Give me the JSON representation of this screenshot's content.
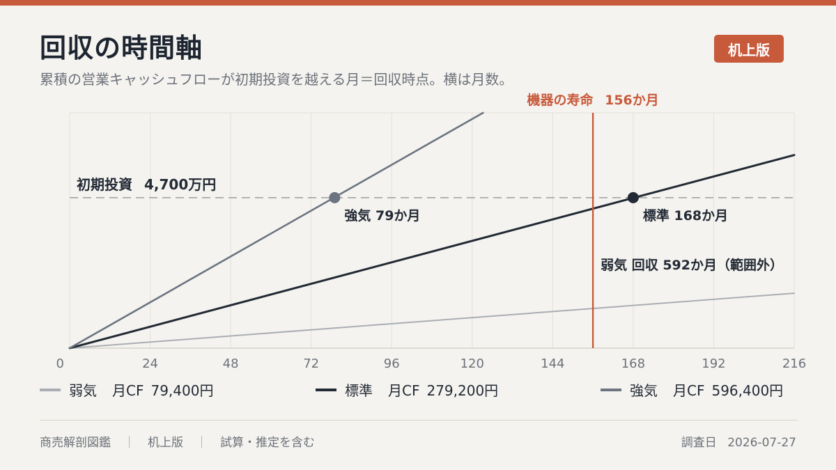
{
  "header": {
    "title": "回収の時間軸",
    "subtitle": "累積の営業キャッシュフローが初期投資を越える月＝回収時点。横は月数。",
    "badge": "机上版"
  },
  "colors": {
    "accent": "#c85a3c",
    "weak": "#a9adb3",
    "standard": "#222a35",
    "strong": "#6b7480",
    "threshold": "#a9a9a9"
  },
  "chart_data": {
    "type": "line",
    "x_range": [
      0,
      216
    ],
    "x_ticks": [
      0,
      24,
      48,
      72,
      96,
      120,
      144,
      168,
      192,
      216
    ],
    "y_range_yen": [
      0,
      73500000
    ],
    "grid": true,
    "threshold": {
      "label": "初期投資",
      "value_label": "4,700万円",
      "value_yen": 47000000
    },
    "lifetime": {
      "label": "機器の寿命",
      "value_label": "156か月",
      "month": 156
    },
    "series": [
      {
        "key": "weak",
        "name": "弱気",
        "cf_label": "月CF",
        "cf_value": "79,400円",
        "monthly_cf_yen": 79400,
        "payback_month": 592,
        "payback_label": "弱気  回収  592か月（範囲外）"
      },
      {
        "key": "standard",
        "name": "標準",
        "cf_label": "月CF",
        "cf_value": "279,200円",
        "monthly_cf_yen": 279200,
        "payback_month": 168,
        "payback_label": "標準  168か月"
      },
      {
        "key": "strong",
        "name": "強気",
        "cf_label": "月CF",
        "cf_value": "596,400円",
        "monthly_cf_yen": 596400,
        "payback_month": 79,
        "payback_label": "強気  79か月"
      }
    ]
  },
  "footer": {
    "items": [
      "商売解剖図鑑",
      "机上版",
      "試算・推定を含む"
    ],
    "separator": "｜",
    "date_label": "調査日",
    "date": "2026-07-27"
  }
}
